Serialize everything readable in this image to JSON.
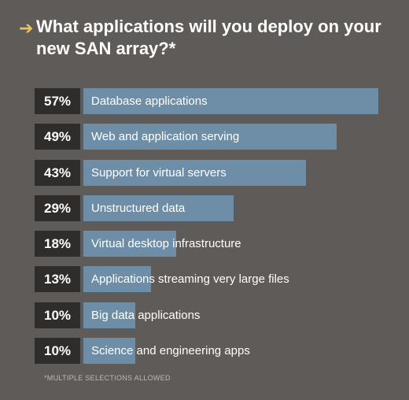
{
  "title": "What applications will you deploy on your new SAN array?*",
  "footnote": "*MULTIPLE SELECTIONS ALLOWED",
  "colors": {
    "background": "#5f5b58",
    "bar": "#6e8ea8",
    "percent_box": "#2f2d2c",
    "accent": "#e8c45a"
  },
  "chart_data": {
    "type": "bar",
    "orientation": "horizontal",
    "categories": [
      "Database applications",
      "Web and application serving",
      "Support for virtual servers",
      "Unstructured data",
      "Virtual desktop infrastructure",
      "Applications streaming very large files",
      "Big data applications",
      "Science and engineering apps"
    ],
    "values": [
      57,
      49,
      43,
      29,
      18,
      13,
      10,
      10
    ],
    "value_labels": [
      "57%",
      "49%",
      "43%",
      "29%",
      "18%",
      "13%",
      "10%",
      "10%"
    ],
    "title": "What applications will you deploy on your new SAN array?*",
    "xlim": [
      0,
      57
    ]
  }
}
